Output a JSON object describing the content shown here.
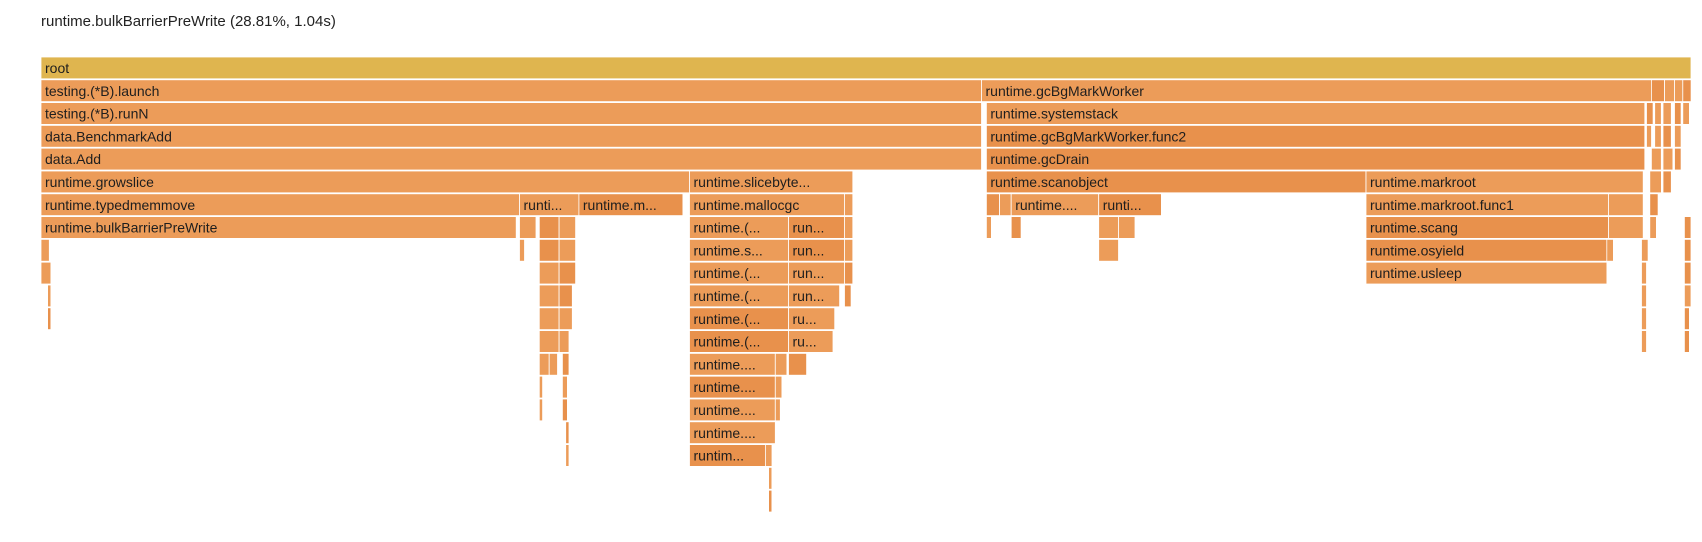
{
  "hover_info": "runtime.bulkBarrierPreWrite (28.81%, 1.04s)",
  "colors": {
    "root": "#dfb54f",
    "frame": "#ec9c59",
    "frame_alt": "#e8914c",
    "text": "#1e1e1e"
  },
  "chart_data": {
    "type": "flamegraph",
    "unit": "fraction of root",
    "frames": [
      {
        "name": "root",
        "depth": 0,
        "start": 0.0,
        "width": 1.0
      },
      {
        "name": "testing.(*B).launch",
        "depth": 1,
        "start": 0.0,
        "width": 0.57
      },
      {
        "name": "runtime.gcBgMarkWorker",
        "depth": 1,
        "start": 0.57,
        "width": 0.406
      },
      {
        "name": "",
        "depth": 1,
        "start": 0.976,
        "width": 0.008
      },
      {
        "name": "",
        "depth": 1,
        "start": 0.984,
        "width": 0.006
      },
      {
        "name": "",
        "depth": 1,
        "start": 0.99,
        "width": 0.005
      },
      {
        "name": "",
        "depth": 1,
        "start": 0.995,
        "width": 0.005
      },
      {
        "name": "testing.(*B).runN",
        "depth": 2,
        "start": 0.0,
        "width": 0.57
      },
      {
        "name": "runtime.systemstack",
        "depth": 2,
        "start": 0.573,
        "width": 0.399
      },
      {
        "name": "",
        "depth": 2,
        "start": 0.973,
        "width": 0.004
      },
      {
        "name": "",
        "depth": 2,
        "start": 0.978,
        "width": 0.004
      },
      {
        "name": "",
        "depth": 2,
        "start": 0.983,
        "width": 0.005
      },
      {
        "name": "",
        "depth": 2,
        "start": 0.99,
        "width": 0.004
      },
      {
        "name": "",
        "depth": 2,
        "start": 0.995,
        "width": 0.004
      },
      {
        "name": "data.BenchmarkAdd",
        "depth": 3,
        "start": 0.0,
        "width": 0.57
      },
      {
        "name": "runtime.gcBgMarkWorker.func2",
        "depth": 3,
        "start": 0.573,
        "width": 0.399
      },
      {
        "name": "",
        "depth": 3,
        "start": 0.973,
        "width": 0.003
      },
      {
        "name": "",
        "depth": 3,
        "start": 0.978,
        "width": 0.004
      },
      {
        "name": "",
        "depth": 3,
        "start": 0.983,
        "width": 0.005
      },
      {
        "name": "",
        "depth": 3,
        "start": 0.99,
        "width": 0.004
      },
      {
        "name": "data.Add",
        "depth": 4,
        "start": 0.0,
        "width": 0.57
      },
      {
        "name": "runtime.gcDrain",
        "depth": 4,
        "start": 0.573,
        "width": 0.399
      },
      {
        "name": "",
        "depth": 4,
        "start": 0.976,
        "width": 0.006
      },
      {
        "name": "",
        "depth": 4,
        "start": 0.983,
        "width": 0.006
      },
      {
        "name": "",
        "depth": 4,
        "start": 0.99,
        "width": 0.004
      },
      {
        "name": "runtime.growslice",
        "depth": 5,
        "start": 0.0,
        "width": 0.393
      },
      {
        "name": "runtime.slicebyte...",
        "depth": 5,
        "start": 0.393,
        "width": 0.099
      },
      {
        "name": "runtime.scanobject",
        "depth": 5,
        "start": 0.573,
        "width": 0.23
      },
      {
        "name": "runtime.markroot",
        "depth": 5,
        "start": 0.803,
        "width": 0.168
      },
      {
        "name": "",
        "depth": 5,
        "start": 0.975,
        "width": 0.007
      },
      {
        "name": "",
        "depth": 5,
        "start": 0.983,
        "width": 0.005
      },
      {
        "name": "runtime.typedmemmove",
        "depth": 6,
        "start": 0.0,
        "width": 0.29
      },
      {
        "name": "runti...",
        "depth": 6,
        "start": 0.29,
        "width": 0.036
      },
      {
        "name": "runtime.m...",
        "depth": 6,
        "start": 0.326,
        "width": 0.063
      },
      {
        "name": "runtime.mallocgc",
        "depth": 6,
        "start": 0.393,
        "width": 0.094
      },
      {
        "name": "",
        "depth": 6,
        "start": 0.487,
        "width": 0.005
      },
      {
        "name": "",
        "depth": 6,
        "start": 0.573,
        "width": 0.008
      },
      {
        "name": "",
        "depth": 6,
        "start": 0.581,
        "width": 0.007
      },
      {
        "name": "runtime....",
        "depth": 6,
        "start": 0.588,
        "width": 0.053
      },
      {
        "name": "runti...",
        "depth": 6,
        "start": 0.641,
        "width": 0.038
      },
      {
        "name": "runtime.markroot.func1",
        "depth": 6,
        "start": 0.803,
        "width": 0.147
      },
      {
        "name": "",
        "depth": 6,
        "start": 0.95,
        "width": 0.021
      },
      {
        "name": "",
        "depth": 6,
        "start": 0.975,
        "width": 0.005
      },
      {
        "name": "runtime.bulkBarrierPreWrite",
        "depth": 7,
        "start": 0.0,
        "width": 0.288
      },
      {
        "name": "",
        "depth": 7,
        "start": 0.29,
        "width": 0.01
      },
      {
        "name": "",
        "depth": 7,
        "start": 0.302,
        "width": 0.012
      },
      {
        "name": "",
        "depth": 7,
        "start": 0.314,
        "width": 0.01
      },
      {
        "name": "runtime.(...",
        "depth": 7,
        "start": 0.393,
        "width": 0.06
      },
      {
        "name": "run...",
        "depth": 7,
        "start": 0.453,
        "width": 0.034
      },
      {
        "name": "",
        "depth": 7,
        "start": 0.487,
        "width": 0.005
      },
      {
        "name": "",
        "depth": 7,
        "start": 0.573,
        "width": 0.003
      },
      {
        "name": "",
        "depth": 7,
        "start": 0.588,
        "width": 0.006
      },
      {
        "name": "",
        "depth": 7,
        "start": 0.641,
        "width": 0.012
      },
      {
        "name": "",
        "depth": 7,
        "start": 0.653,
        "width": 0.01
      },
      {
        "name": "runtime.scang",
        "depth": 7,
        "start": 0.803,
        "width": 0.147
      },
      {
        "name": "",
        "depth": 7,
        "start": 0.95,
        "width": 0.021
      },
      {
        "name": "",
        "depth": 7,
        "start": 0.975,
        "width": 0.004
      },
      {
        "name": "",
        "depth": 7,
        "start": 0.996,
        "width": 0.004
      },
      {
        "name": "",
        "depth": 8,
        "start": 0.0,
        "width": 0.005
      },
      {
        "name": "",
        "depth": 8,
        "start": 0.29,
        "width": 0.003
      },
      {
        "name": "",
        "depth": 8,
        "start": 0.302,
        "width": 0.012
      },
      {
        "name": "",
        "depth": 8,
        "start": 0.314,
        "width": 0.01
      },
      {
        "name": "runtime.s...",
        "depth": 8,
        "start": 0.393,
        "width": 0.06
      },
      {
        "name": "run...",
        "depth": 8,
        "start": 0.453,
        "width": 0.034
      },
      {
        "name": "",
        "depth": 8,
        "start": 0.487,
        "width": 0.005
      },
      {
        "name": "",
        "depth": 8,
        "start": 0.641,
        "width": 0.012
      },
      {
        "name": "runtime.osyield",
        "depth": 8,
        "start": 0.803,
        "width": 0.146
      },
      {
        "name": "",
        "depth": 8,
        "start": 0.949,
        "width": 0.004
      },
      {
        "name": "",
        "depth": 8,
        "start": 0.97,
        "width": 0.004
      },
      {
        "name": "",
        "depth": 8,
        "start": 0.996,
        "width": 0.004
      },
      {
        "name": "",
        "depth": 9,
        "start": 0.0,
        "width": 0.006
      },
      {
        "name": "",
        "depth": 9,
        "start": 0.302,
        "width": 0.012
      },
      {
        "name": "",
        "depth": 9,
        "start": 0.314,
        "width": 0.01
      },
      {
        "name": "runtime.(...",
        "depth": 9,
        "start": 0.393,
        "width": 0.06
      },
      {
        "name": "run...",
        "depth": 9,
        "start": 0.453,
        "width": 0.034
      },
      {
        "name": "",
        "depth": 9,
        "start": 0.487,
        "width": 0.005
      },
      {
        "name": "runtime.usleep",
        "depth": 9,
        "start": 0.803,
        "width": 0.146
      },
      {
        "name": "",
        "depth": 9,
        "start": 0.97,
        "width": 0.003
      },
      {
        "name": "",
        "depth": 9,
        "start": 0.996,
        "width": 0.004
      },
      {
        "name": "",
        "depth": 10,
        "start": 0.004,
        "width": 0.002
      },
      {
        "name": "",
        "depth": 10,
        "start": 0.302,
        "width": 0.012
      },
      {
        "name": "",
        "depth": 10,
        "start": 0.314,
        "width": 0.008
      },
      {
        "name": "runtime.(...",
        "depth": 10,
        "start": 0.393,
        "width": 0.06
      },
      {
        "name": "run...",
        "depth": 10,
        "start": 0.453,
        "width": 0.031
      },
      {
        "name": "",
        "depth": 10,
        "start": 0.487,
        "width": 0.004
      },
      {
        "name": "",
        "depth": 10,
        "start": 0.97,
        "width": 0.003
      },
      {
        "name": "",
        "depth": 10,
        "start": 0.996,
        "width": 0.004
      },
      {
        "name": "",
        "depth": 11,
        "start": 0.004,
        "width": 0.002
      },
      {
        "name": "",
        "depth": 11,
        "start": 0.302,
        "width": 0.012
      },
      {
        "name": "",
        "depth": 11,
        "start": 0.314,
        "width": 0.008
      },
      {
        "name": "runtime.(...",
        "depth": 11,
        "start": 0.393,
        "width": 0.06
      },
      {
        "name": "ru...",
        "depth": 11,
        "start": 0.453,
        "width": 0.028
      },
      {
        "name": "",
        "depth": 11,
        "start": 0.97,
        "width": 0.003
      },
      {
        "name": "",
        "depth": 11,
        "start": 0.996,
        "width": 0.003
      },
      {
        "name": "",
        "depth": 12,
        "start": 0.302,
        "width": 0.012
      },
      {
        "name": "",
        "depth": 12,
        "start": 0.314,
        "width": 0.006
      },
      {
        "name": "runtime.(...",
        "depth": 12,
        "start": 0.393,
        "width": 0.06
      },
      {
        "name": "ru...",
        "depth": 12,
        "start": 0.453,
        "width": 0.027
      },
      {
        "name": "",
        "depth": 12,
        "start": 0.97,
        "width": 0.003
      },
      {
        "name": "",
        "depth": 12,
        "start": 0.996,
        "width": 0.003
      },
      {
        "name": "",
        "depth": 13,
        "start": 0.302,
        "width": 0.006
      },
      {
        "name": "",
        "depth": 13,
        "start": 0.308,
        "width": 0.005
      },
      {
        "name": "",
        "depth": 13,
        "start": 0.316,
        "width": 0.004
      },
      {
        "name": "runtime....",
        "depth": 13,
        "start": 0.393,
        "width": 0.052
      },
      {
        "name": "",
        "depth": 13,
        "start": 0.445,
        "width": 0.007
      },
      {
        "name": "",
        "depth": 13,
        "start": 0.453,
        "width": 0.011
      },
      {
        "name": "",
        "depth": 14,
        "start": 0.302,
        "width": 0.002
      },
      {
        "name": "",
        "depth": 14,
        "start": 0.316,
        "width": 0.003
      },
      {
        "name": "runtime....",
        "depth": 14,
        "start": 0.393,
        "width": 0.052
      },
      {
        "name": "",
        "depth": 14,
        "start": 0.445,
        "width": 0.004
      },
      {
        "name": "",
        "depth": 15,
        "start": 0.302,
        "width": 0.002
      },
      {
        "name": "",
        "depth": 15,
        "start": 0.316,
        "width": 0.003
      },
      {
        "name": "runtime....",
        "depth": 15,
        "start": 0.393,
        "width": 0.052
      },
      {
        "name": "",
        "depth": 15,
        "start": 0.445,
        "width": 0.003
      },
      {
        "name": "",
        "depth": 16,
        "start": 0.318,
        "width": 0.002
      },
      {
        "name": "runtime....",
        "depth": 16,
        "start": 0.393,
        "width": 0.052
      },
      {
        "name": "",
        "depth": 17,
        "start": 0.318,
        "width": 0.002
      },
      {
        "name": "runtim...",
        "depth": 17,
        "start": 0.393,
        "width": 0.046
      },
      {
        "name": "",
        "depth": 17,
        "start": 0.439,
        "width": 0.004
      },
      {
        "name": "",
        "depth": 18,
        "start": 0.441,
        "width": 0.002
      },
      {
        "name": "",
        "depth": 19,
        "start": 0.441,
        "width": 0.002
      }
    ]
  }
}
